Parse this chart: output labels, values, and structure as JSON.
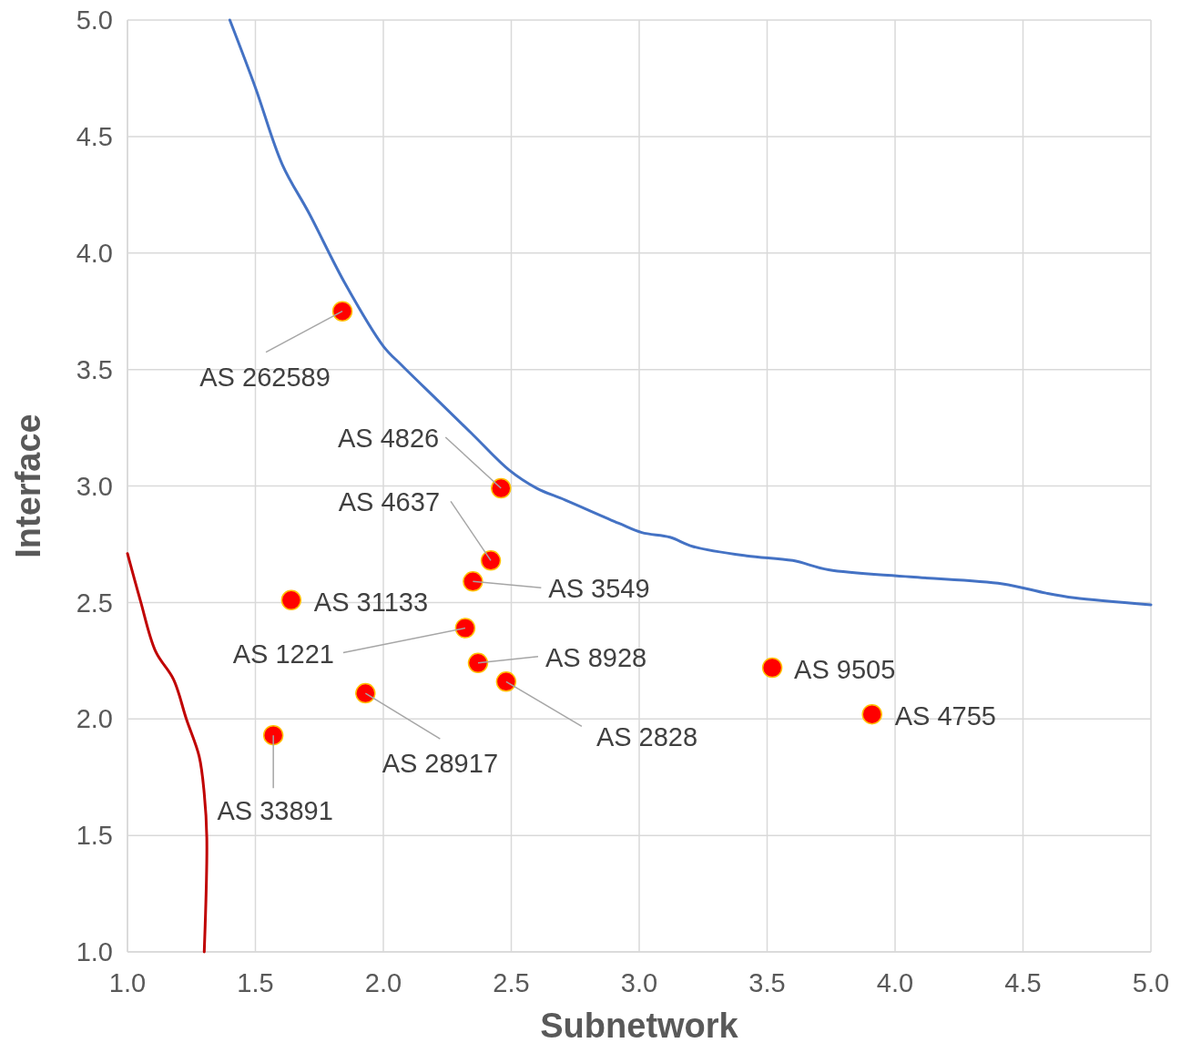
{
  "chart_data": {
    "type": "scatter",
    "xlabel": "Subnetwork",
    "ylabel": "Interface",
    "xlim": [
      1,
      5
    ],
    "ylim": [
      1,
      5
    ],
    "xticks": [
      {
        "value": 1,
        "label": "1.0"
      },
      {
        "value": 1.5,
        "label": "1.5"
      },
      {
        "value": 2,
        "label": "2.0"
      },
      {
        "value": 2.5,
        "label": "2.5"
      },
      {
        "value": 3,
        "label": "3.0"
      },
      {
        "value": 3.5,
        "label": "3.5"
      },
      {
        "value": 4,
        "label": "4.0"
      },
      {
        "value": 4.5,
        "label": "4.5"
      },
      {
        "value": 5,
        "label": "5.0"
      }
    ],
    "yticks": [
      {
        "value": 1,
        "label": "1.0"
      },
      {
        "value": 1.5,
        "label": "1.5"
      },
      {
        "value": 2,
        "label": "2.0"
      },
      {
        "value": 2.5,
        "label": "2.5"
      },
      {
        "value": 3,
        "label": "3.0"
      },
      {
        "value": 3.5,
        "label": "3.5"
      },
      {
        "value": 4,
        "label": "4.0"
      },
      {
        "value": 4.5,
        "label": "4.5"
      },
      {
        "value": 5,
        "label": "5.0"
      }
    ],
    "grid": true,
    "series": [
      {
        "type": "line",
        "color": "#4472c4",
        "marker": "none",
        "x": [
          1.4,
          1.5,
          1.605,
          1.71,
          1.85,
          2.0,
          2.07,
          2.21,
          2.35,
          2.49,
          2.6,
          2.71,
          2.92,
          3.01,
          3.12,
          3.21,
          3.42,
          3.6,
          3.74,
          4.06,
          4.42,
          4.59,
          4.7,
          5.0
        ],
        "values": [
          5.0,
          4.71,
          4.38,
          4.17,
          3.87,
          3.6,
          3.52,
          3.37,
          3.22,
          3.07,
          2.99,
          2.94,
          2.84,
          2.8,
          2.78,
          2.74,
          2.7,
          2.68,
          2.64,
          2.61,
          2.58,
          2.54,
          2.52,
          2.49
        ]
      },
      {
        "type": "line",
        "color": "#c00000",
        "marker": "none",
        "x": [
          1.0,
          1.05,
          1.11,
          1.18,
          1.23,
          1.28,
          1.3,
          1.31,
          1.3
        ],
        "values": [
          2.71,
          2.51,
          2.29,
          2.17,
          2.0,
          1.84,
          1.68,
          1.49,
          1.0
        ]
      },
      {
        "color": "#ff0000",
        "marker": "circle",
        "x": [
          1.84,
          2.46,
          2.42,
          2.35,
          1.64,
          2.32,
          2.37,
          2.48,
          3.52,
          3.91,
          1.93,
          1.57
        ],
        "values": [
          3.75,
          2.99,
          2.68,
          2.59,
          2.51,
          2.39,
          2.24,
          2.16,
          2.22,
          2.02,
          2.11,
          1.93
        ]
      }
    ],
    "annotations": [
      {
        "text": "AS 262589",
        "x": 1.84,
        "y": 3.75
      },
      {
        "text": "AS 4826",
        "x": 2.46,
        "y": 2.99
      },
      {
        "text": "AS 4637",
        "x": 2.42,
        "y": 2.68
      },
      {
        "text": "AS 3549",
        "x": 2.35,
        "y": 2.59
      },
      {
        "text": "AS 31133",
        "x": 1.64,
        "y": 2.51
      },
      {
        "text": "AS 1221",
        "x": 2.32,
        "y": 2.39
      },
      {
        "text": "AS 8928",
        "x": 2.37,
        "y": 2.24
      },
      {
        "text": "AS 2828",
        "x": 2.48,
        "y": 2.16
      },
      {
        "text": "AS 9505",
        "x": 3.52,
        "y": 2.22
      },
      {
        "text": "AS 4755",
        "x": 3.91,
        "y": 2.02
      },
      {
        "text": "AS 28917",
        "x": 1.93,
        "y": 2.11
      },
      {
        "text": "AS 33891",
        "x": 1.57,
        "y": 1.93
      }
    ]
  }
}
